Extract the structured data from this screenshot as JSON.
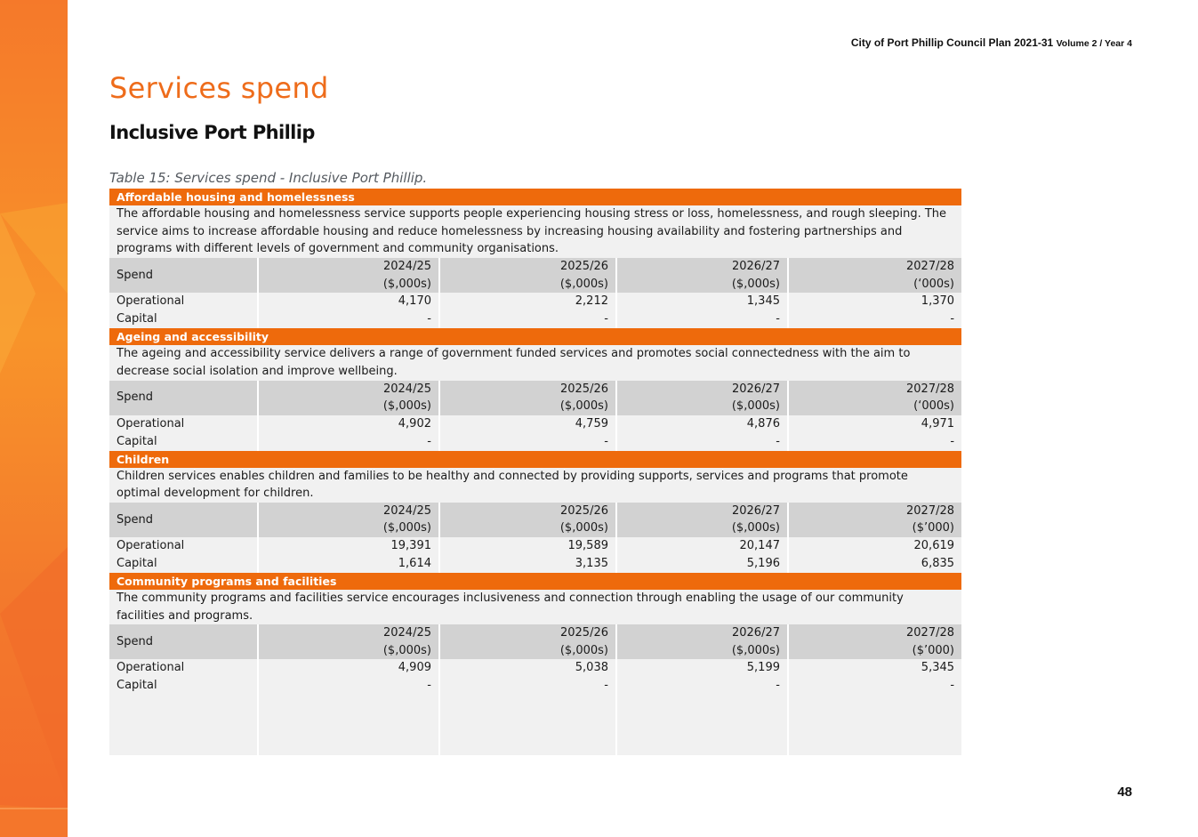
{
  "header": {
    "doc_title": "City of Port Phillip Council Plan 2021-31",
    "doc_subtitle": "Volume 2 / Year 4"
  },
  "page_title": "Services spend",
  "section_title": "Inclusive Port Phillip",
  "table_caption": "Table 15: Services spend - Inclusive Port Phillip.",
  "colors": {
    "accent": "#ee6a0c",
    "header_cell": "#d2d2d2",
    "body_cell": "#f1f1f1"
  },
  "sections": [
    {
      "name": "Affordable housing and homelessness",
      "description": "The affordable housing and homelessness service supports people experiencing housing stress or loss, homelessness, and rough sleeping. The service aims to increase affordable housing and reduce homelessness by increasing housing availability and fostering partnerships and programs with different levels of government and community organisations.",
      "spend_label": "Spend",
      "columns": [
        {
          "year": "2024/25",
          "unit": "($,000s)"
        },
        {
          "year": "2025/26",
          "unit": "($,000s)"
        },
        {
          "year": "2026/27",
          "unit": "($,000s)"
        },
        {
          "year": "2027/28",
          "unit": "(‘000s)"
        }
      ],
      "rows": [
        {
          "label": "Operational",
          "values": [
            "4,170",
            "2,212",
            "1,345",
            "1,370"
          ]
        },
        {
          "label": "Capital",
          "values": [
            "-",
            "-",
            "-",
            "-"
          ]
        }
      ]
    },
    {
      "name": "Ageing and accessibility",
      "description": "The ageing and accessibility service delivers a range of government funded services and promotes social connectedness with the aim to decrease social isolation and improve wellbeing.",
      "spend_label": "Spend",
      "columns": [
        {
          "year": "2024/25",
          "unit": "($,000s)"
        },
        {
          "year": "2025/26",
          "unit": "($,000s)"
        },
        {
          "year": "2026/27",
          "unit": "($,000s)"
        },
        {
          "year": "2027/28",
          "unit": "(‘000s)"
        }
      ],
      "rows": [
        {
          "label": "Operational",
          "values": [
            "4,902",
            "4,759",
            "4,876",
            "4,971"
          ]
        },
        {
          "label": "Capital",
          "values": [
            "-",
            "-",
            "-",
            "-"
          ]
        }
      ]
    },
    {
      "name": "Children",
      "description": "Children services enables children and families to be healthy and connected by providing supports, services and programs that promote optimal development for children.",
      "spend_label": "Spend",
      "columns": [
        {
          "year": "2024/25",
          "unit": "($,000s)"
        },
        {
          "year": "2025/26",
          "unit": "($,000s)"
        },
        {
          "year": "2026/27",
          "unit": "($,000s)"
        },
        {
          "year": "2027/28",
          "unit": "($’000)"
        }
      ],
      "rows": [
        {
          "label": "Operational",
          "values": [
            "19,391",
            "19,589",
            "20,147",
            "20,619"
          ]
        },
        {
          "label": "Capital",
          "values": [
            "1,614",
            "3,135",
            "5,196",
            "6,835"
          ]
        }
      ]
    },
    {
      "name": "Community programs and facilities",
      "description": "The community programs and facilities service encourages inclusiveness and connection through enabling the usage of our community facilities and programs.",
      "spend_label": "Spend",
      "columns": [
        {
          "year": "2024/25",
          "unit": "($,000s)"
        },
        {
          "year": "2025/26",
          "unit": "($,000s)"
        },
        {
          "year": "2026/27",
          "unit": "($,000s)"
        },
        {
          "year": "2027/28",
          "unit": "($’000)"
        }
      ],
      "rows": [
        {
          "label": "Operational",
          "values": [
            "4,909",
            "5,038",
            "5,199",
            "5,345"
          ]
        },
        {
          "label": "Capital",
          "values": [
            "-",
            "-",
            "-",
            "-"
          ]
        }
      ]
    }
  ],
  "page_number": "48"
}
